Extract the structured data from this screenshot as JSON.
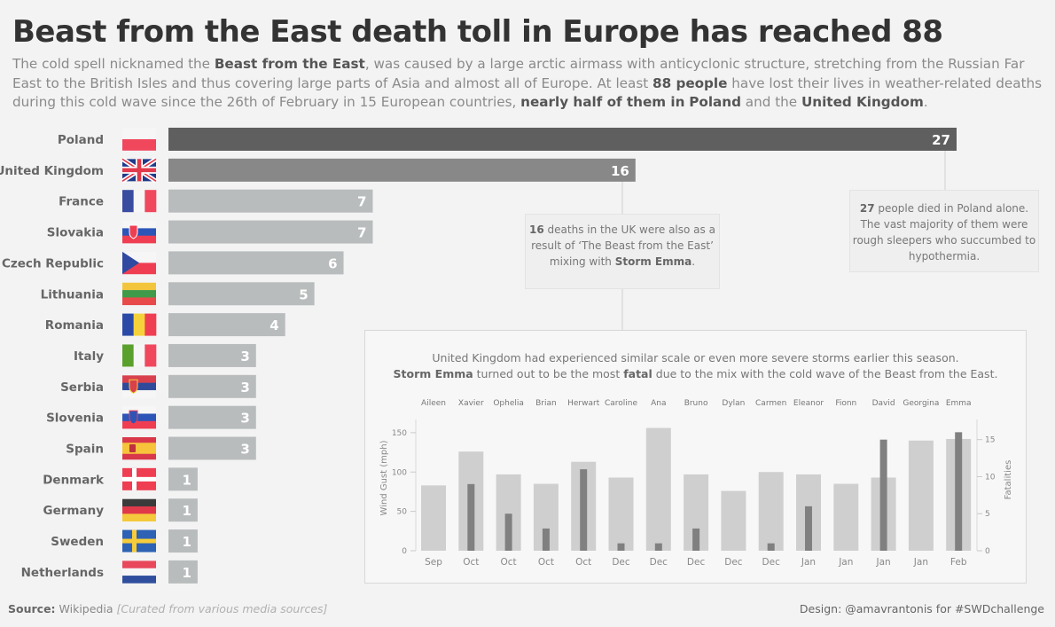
{
  "title": "Beast from the East death toll in Europe has reached 88",
  "subtitle": {
    "s1": "The cold spell nicknamed the ",
    "b1": "Beast from the East",
    "s2": ", was caused by a large arctic airmass with anticyclonic structure, stretching from the Russian Far East to the British Isles and thus covering large parts of Asia and almost all of Europe. At least ",
    "b2": "88 people",
    "s3": " have lost their lives in weather-related deaths during this cold wave since the 26th of February in 15 European countries, ",
    "b3": "nearly half of them in",
    "s4": " ",
    "d1": "Poland",
    "s5": " and the ",
    "d2": "United Kingdom",
    "s6": "."
  },
  "callouts": {
    "uk": {
      "b": "16",
      "t1": " deaths in the UK were also as a result of ‘The Beast from the East’ mixing with ",
      "b2": "Storm Emma",
      "t2": "."
    },
    "poland": {
      "b": "27",
      "t1": " people died in Poland alone. The vast majority of them were rough sleepers who succumbed to hypothermia."
    }
  },
  "colors": {
    "poland": "#5f5f5f",
    "uk": "#888888",
    "others": "#b9bcbd",
    "wind": "#cfcfcf",
    "fatal": "#808080"
  },
  "chart_data": [
    {
      "type": "bar",
      "orientation": "horizontal",
      "categories": [
        "Poland",
        "United Kingdom",
        "France",
        "Slovakia",
        "Czech Republic",
        "Lithuania",
        "Romania",
        "Italy",
        "Serbia",
        "Slovenia",
        "Spain",
        "Denmark",
        "Germany",
        "Sweden",
        "Netherlands"
      ],
      "values": [
        27,
        16,
        7,
        7,
        6,
        5,
        4,
        3,
        3,
        3,
        3,
        1,
        1,
        1,
        1
      ],
      "flags": [
        "poland-flag-icon",
        "united-kingdom-flag-icon",
        "france-flag-icon",
        "slovakia-flag-icon",
        "czech-republic-flag-icon",
        "lithuania-flag-icon",
        "romania-flag-icon",
        "italy-flag-icon",
        "serbia-flag-icon",
        "slovenia-flag-icon",
        "spain-flag-icon",
        "denmark-flag-icon",
        "germany-flag-icon",
        "sweden-flag-icon",
        "netherlands-flag-icon"
      ]
    },
    {
      "type": "bar",
      "title_line1": "United Kingdom had experienced similar scale or even more severe storms earlier this season.",
      "title_b1": "Storm Emma",
      "title_t1": " turned out to be the most ",
      "title_b2": "fatal",
      "title_t2": " due to the mix with the cold wave of the Beast from the East.",
      "storms": [
        "Aileen",
        "Xavier",
        "Ophelia",
        "Brian",
        "Herwart",
        "Caroline",
        "Ana",
        "Bruno",
        "Dylan",
        "Carmen",
        "Eleanor",
        "Fionn",
        "David",
        "Georgina",
        "Emma"
      ],
      "months": [
        "Sep",
        "Oct",
        "Oct",
        "Oct",
        "Oct",
        "Dec",
        "Dec",
        "Dec",
        "Dec",
        "Dec",
        "Jan",
        "Jan",
        "Jan",
        "Jan",
        "Feb"
      ],
      "series": [
        {
          "name": "Wind Gust (mph)",
          "axis": "left",
          "values": [
            83,
            126,
            97,
            85,
            113,
            93,
            156,
            97,
            76,
            100,
            97,
            85,
            93,
            140,
            142
          ]
        },
        {
          "name": "Fatalities",
          "axis": "right",
          "values": [
            0,
            9,
            5,
            3,
            11,
            1,
            1,
            3,
            0,
            1,
            6,
            0,
            15,
            0,
            16
          ]
        }
      ],
      "ylabel_left": "Wind Gust (mph)",
      "ylabel_right": "Fatalities",
      "yticks_left": [
        "0",
        "50",
        "100",
        "150"
      ],
      "yticks_right": [
        "0",
        "5",
        "10",
        "15"
      ],
      "ylim_left": [
        0,
        160
      ],
      "ylim_right": [
        0,
        17
      ],
      "grid": false
    }
  ],
  "footer": {
    "source_label": "Source:",
    "source_text": " Wikipedia ",
    "source_note": "[Curated from various media sources]",
    "design": "Design: @amavrantonis for #SWDchallenge"
  }
}
